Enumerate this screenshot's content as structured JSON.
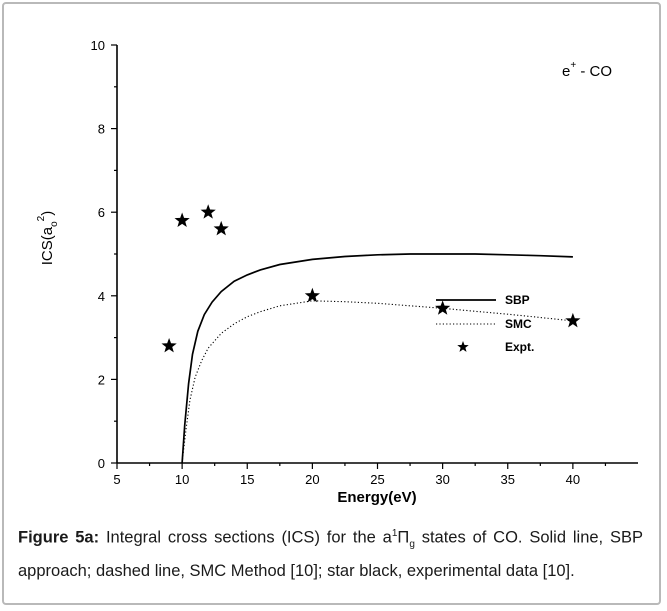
{
  "chart_data": {
    "type": "line",
    "title": "",
    "annotation": {
      "base": "e",
      "sup": "+",
      "rest": " - CO"
    },
    "xlabel": "Energy(eV)",
    "ylabel": {
      "base": "ICS(a",
      "sub": "o",
      "sup": "2",
      "close": ")"
    },
    "xlim": [
      5,
      45
    ],
    "ylim": [
      0,
      10
    ],
    "x_ticks": [
      5,
      10,
      15,
      20,
      25,
      30,
      35,
      40
    ],
    "y_ticks": [
      0,
      2,
      4,
      6,
      8,
      10
    ],
    "legend_position": "right-middle",
    "series": [
      {
        "name": "SBP",
        "style": "solid",
        "x": [
          10.0,
          10.2,
          10.5,
          10.8,
          11.2,
          11.7,
          12.3,
          13.0,
          14.0,
          15.0,
          16.0,
          17.5,
          20.0,
          22.5,
          25.0,
          27.5,
          30.0,
          32.5,
          35.0,
          37.5,
          40.0
        ],
        "y": [
          0.0,
          0.9,
          1.9,
          2.6,
          3.15,
          3.55,
          3.85,
          4.1,
          4.35,
          4.5,
          4.62,
          4.75,
          4.87,
          4.94,
          4.98,
          5.0,
          5.0,
          5.0,
          4.98,
          4.96,
          4.93
        ]
      },
      {
        "name": "SMC",
        "style": "dotted",
        "x": [
          10.0,
          10.3,
          10.6,
          11.0,
          11.5,
          12.0,
          13.0,
          14.0,
          15.0,
          16.0,
          17.5,
          20.0,
          22.5,
          25.0,
          27.5,
          30.0,
          32.5,
          35.0,
          37.5,
          40.0
        ],
        "y": [
          0.0,
          0.8,
          1.5,
          2.05,
          2.45,
          2.75,
          3.1,
          3.33,
          3.5,
          3.62,
          3.76,
          3.88,
          3.86,
          3.82,
          3.76,
          3.7,
          3.63,
          3.56,
          3.48,
          3.4
        ]
      }
    ],
    "points": {
      "name": "Expt.",
      "marker": "star",
      "x": [
        9,
        10,
        12,
        13,
        20,
        30,
        40
      ],
      "y": [
        2.8,
        5.8,
        6.0,
        5.6,
        4.0,
        3.7,
        3.4
      ]
    }
  },
  "caption": {
    "label": "Figure 5a:",
    "text_1": " Integral cross sections (ICS) for the a",
    "sup": "1",
    "pi": "Π",
    "sub": "g",
    "text_2": " states of CO. Solid line, SBP approach; dashed line, SMC Method [10]; star black, experimental data [10]."
  }
}
